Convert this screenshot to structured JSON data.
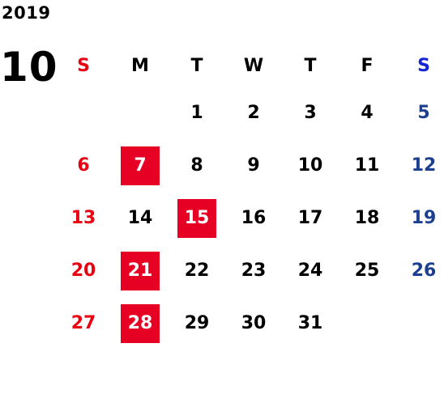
{
  "year": "2019",
  "month": "10",
  "colors": {
    "sunday": "#e60012",
    "saturday": "#1d3f8f",
    "saturday_header": "#1424d6",
    "holiday_bg": "#e60023",
    "text": "#000000"
  },
  "weekdays": [
    "S",
    "M",
    "T",
    "W",
    "T",
    "F",
    "S"
  ],
  "weeks": [
    [
      "",
      "",
      "1",
      "2",
      "3",
      "4",
      "5"
    ],
    [
      "6",
      "7",
      "8",
      "9",
      "10",
      "11",
      "12"
    ],
    [
      "13",
      "14",
      "15",
      "16",
      "17",
      "18",
      "19"
    ],
    [
      "20",
      "21",
      "22",
      "23",
      "24",
      "25",
      "26"
    ],
    [
      "27",
      "28",
      "29",
      "30",
      "31",
      "",
      ""
    ]
  ],
  "highlighted_days": [
    "7",
    "15",
    "21",
    "28"
  ]
}
